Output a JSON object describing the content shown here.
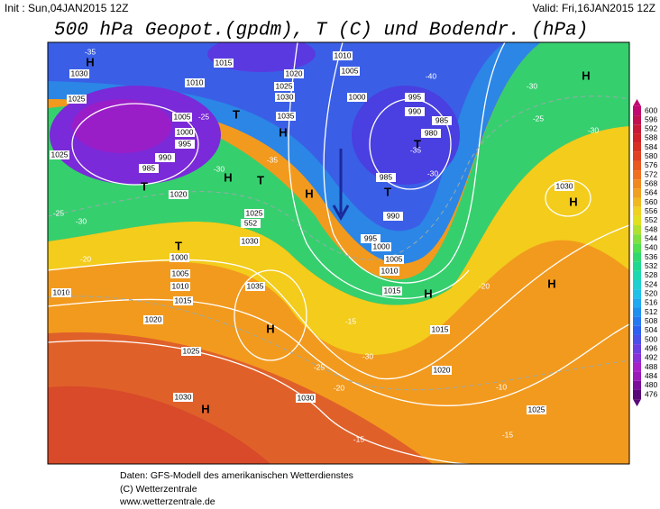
{
  "header": {
    "init": "Init : Sun,04JAN2015 12Z",
    "valid": "Valid: Fri,16JAN2015 12Z",
    "title": "500 hPa Geopot.(gpdm), T (C) und Bodendr. (hPa)"
  },
  "colorbar": {
    "levels": [
      600,
      596,
      592,
      588,
      584,
      580,
      576,
      572,
      568,
      564,
      560,
      556,
      552,
      548,
      544,
      540,
      536,
      532,
      528,
      524,
      520,
      516,
      512,
      508,
      504,
      500,
      496,
      492,
      488,
      484,
      480,
      476
    ],
    "colors": [
      "#c00870",
      "#c01050",
      "#c81838",
      "#d02028",
      "#d83020",
      "#e04020",
      "#e85820",
      "#f07020",
      "#f08820",
      "#f0a020",
      "#f0b820",
      "#f0d020",
      "#e0e020",
      "#b0e030",
      "#80e040",
      "#50e050",
      "#30d870",
      "#20d890",
      "#20d8b0",
      "#20d0d0",
      "#20c0e8",
      "#20a8f0",
      "#2090f0",
      "#2878f0",
      "#3060f0",
      "#4a50e8",
      "#6a40e0",
      "#8a30d8",
      "#a820c8",
      "#9a18b8",
      "#7a109a",
      "#5a0a78"
    ]
  },
  "map": {
    "isobar_labels": [
      "1030",
      "1015",
      "1010",
      "1005",
      "1020",
      "1025",
      "1030",
      "1035",
      "1010",
      "1025",
      "1005",
      "1000",
      "995",
      "990",
      "985",
      "1000",
      "995",
      "990",
      "985",
      "980",
      "985",
      "990",
      "995",
      "1000",
      "1005",
      "1010",
      "1015",
      "1020",
      "1025",
      "552",
      "1030",
      "1000",
      "1005",
      "1010",
      "1015",
      "1010",
      "1020",
      "1025",
      "1035",
      "1030",
      "1030",
      "1015",
      "1020",
      "1025",
      "1030",
      "1025"
    ],
    "temp_labels": [
      "-35",
      "-25",
      "-30",
      "-20",
      "-15",
      "-25",
      "-30",
      "-35",
      "-40",
      "-35",
      "-30",
      "-30",
      "-25",
      "-30",
      "-25",
      "-20",
      "-15",
      "-30",
      "-20",
      "-10",
      "-15",
      "-15"
    ],
    "centers": [
      "H",
      "H",
      "T",
      "H",
      "T",
      "H",
      "T",
      "H",
      "T",
      "T",
      "H",
      "T",
      "H",
      "H",
      "H",
      "H"
    ]
  },
  "footer": [
    "Daten: GFS-Modell des amerikanischen Wetterdienstes",
    "(C) Wetterzentrale",
    "www.wetterzentrale.de"
  ]
}
